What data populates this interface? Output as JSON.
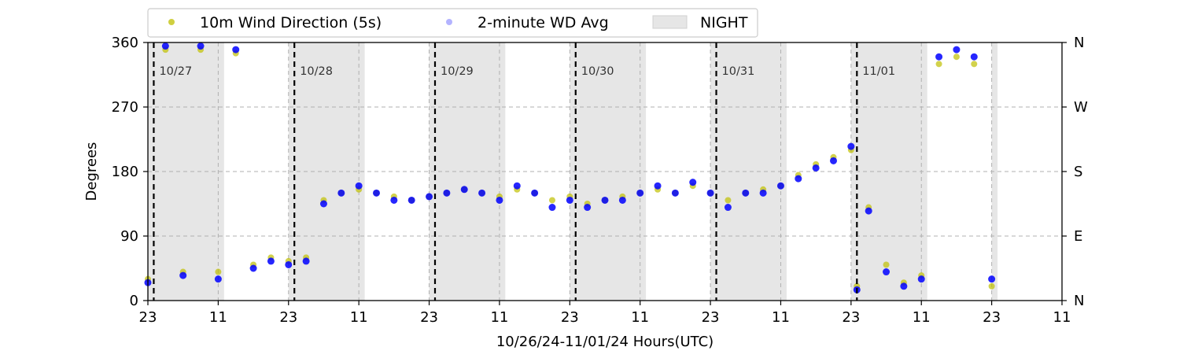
{
  "chart_data": {
    "type": "scatter",
    "xlabel": "10/26/24-11/01/24  Hours(UTC)",
    "ylabel": "Degrees",
    "xlim": [
      0,
      156
    ],
    "ylim": [
      0,
      360
    ],
    "x_ticks": [
      0,
      12,
      24,
      36,
      48,
      60,
      72,
      84,
      96,
      108,
      120,
      132,
      144,
      156
    ],
    "x_tick_labels": [
      "23",
      "11",
      "23",
      "11",
      "23",
      "11",
      "23",
      "11",
      "23",
      "11",
      "23",
      "11",
      "23",
      "11"
    ],
    "y_ticks": [
      0,
      90,
      180,
      270,
      360
    ],
    "y_tick_labels": [
      "0",
      "90",
      "180",
      "270",
      "360"
    ],
    "y2_tick_labels": [
      "N",
      "E",
      "S",
      "W",
      "N"
    ],
    "grid": "dashed",
    "legend_position": "top",
    "colors": {
      "wind_5s": "#bfbf00",
      "wd_avg": "#0000ff",
      "night": "#e6e6e6",
      "day_line": "#000000",
      "grid": "#b0b0b0"
    },
    "legend": [
      {
        "label": "10m Wind Direction (5s)",
        "marker": "dot",
        "color": "#bfbf00"
      },
      {
        "label": "2-minute WD Avg",
        "marker": "dot",
        "color": "#8080ff"
      },
      {
        "label": "NIGHT",
        "marker": "patch",
        "color": "#e6e6e6"
      }
    ],
    "night_shading": [
      [
        0,
        13
      ],
      [
        24,
        37
      ],
      [
        48,
        61
      ],
      [
        72,
        85
      ],
      [
        96,
        109
      ],
      [
        120,
        133
      ],
      [
        144,
        145
      ]
    ],
    "day_markers": [
      {
        "x": 1,
        "label": "10/27"
      },
      {
        "x": 25,
        "label": "10/28"
      },
      {
        "x": 49,
        "label": "10/29"
      },
      {
        "x": 73,
        "label": "10/30"
      },
      {
        "x": 97,
        "label": "10/31"
      },
      {
        "x": 121,
        "label": "11/01"
      }
    ],
    "series": [
      {
        "name": "10m Wind Direction (5s)",
        "x": [
          0,
          3,
          6,
          9,
          12,
          15,
          18,
          21,
          24,
          27,
          30,
          33,
          36,
          39,
          42,
          45,
          48,
          51,
          54,
          57,
          60,
          63,
          66,
          69,
          72,
          75,
          78,
          81,
          84,
          87,
          90,
          93,
          96,
          99,
          102,
          105,
          108,
          111,
          114,
          117,
          120,
          121,
          123,
          126,
          129,
          132,
          135,
          138,
          141,
          144
        ],
        "y": [
          30,
          350,
          40,
          350,
          40,
          345,
          50,
          60,
          55,
          60,
          140,
          150,
          155,
          150,
          145,
          140,
          145,
          150,
          155,
          150,
          145,
          155,
          150,
          140,
          145,
          135,
          140,
          145,
          150,
          155,
          150,
          160,
          150,
          140,
          150,
          155,
          160,
          175,
          190,
          200,
          210,
          20,
          130,
          50,
          25,
          35,
          330,
          340,
          330,
          20
        ]
      },
      {
        "name": "2-minute WD Avg",
        "x": [
          0,
          3,
          6,
          9,
          12,
          15,
          18,
          21,
          24,
          27,
          30,
          33,
          36,
          39,
          42,
          45,
          48,
          51,
          54,
          57,
          60,
          63,
          66,
          69,
          72,
          75,
          78,
          81,
          84,
          87,
          90,
          93,
          96,
          99,
          102,
          105,
          108,
          111,
          114,
          117,
          120,
          121,
          123,
          126,
          129,
          132,
          135,
          138,
          141,
          144
        ],
        "y": [
          25,
          355,
          35,
          355,
          30,
          350,
          45,
          55,
          50,
          55,
          135,
          150,
          160,
          150,
          140,
          140,
          145,
          150,
          155,
          150,
          140,
          160,
          150,
          130,
          140,
          130,
          140,
          140,
          150,
          160,
          150,
          165,
          150,
          130,
          150,
          150,
          160,
          170,
          185,
          195,
          215,
          15,
          125,
          40,
          20,
          30,
          340,
          350,
          340,
          30
        ]
      }
    ]
  }
}
